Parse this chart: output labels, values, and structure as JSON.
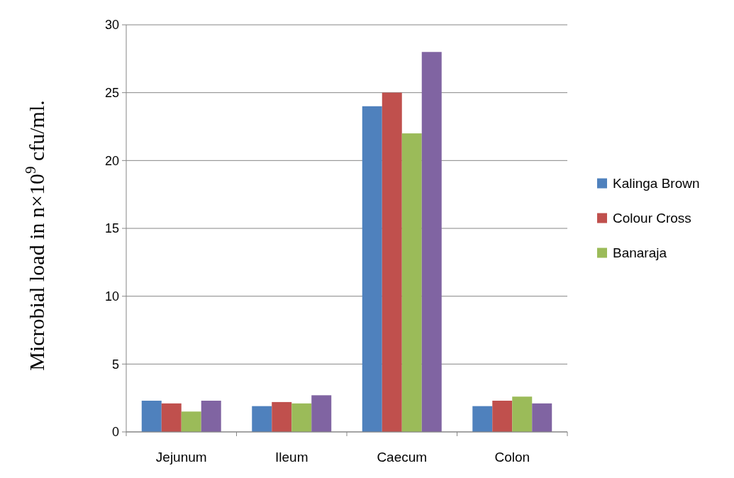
{
  "chart_data": {
    "type": "bar",
    "ylabel": "Microbial load in  n×10$^{9}$ cfu/ml.",
    "categories": [
      "Jejunum",
      "Ileum",
      "Caecum",
      "Colon"
    ],
    "series": [
      {
        "name": "Kalinga Brown",
        "color": "#4f81bd",
        "values": [
          2.3,
          1.9,
          24,
          1.9
        ]
      },
      {
        "name": "Colour Cross",
        "color": "#c0504d",
        "values": [
          2.1,
          2.2,
          25,
          2.3
        ]
      },
      {
        "name": "Banaraja",
        "color": "#9bbb59",
        "values": [
          1.5,
          2.1,
          22,
          2.6
        ]
      },
      {
        "color": "#8064a2",
        "values": [
          2.3,
          2.7,
          28,
          2.1
        ]
      }
    ],
    "ylim": [
      0,
      30
    ],
    "yticks": [
      0,
      5,
      10,
      15,
      20,
      25,
      30
    ],
    "grid": "y",
    "legend": "right"
  }
}
